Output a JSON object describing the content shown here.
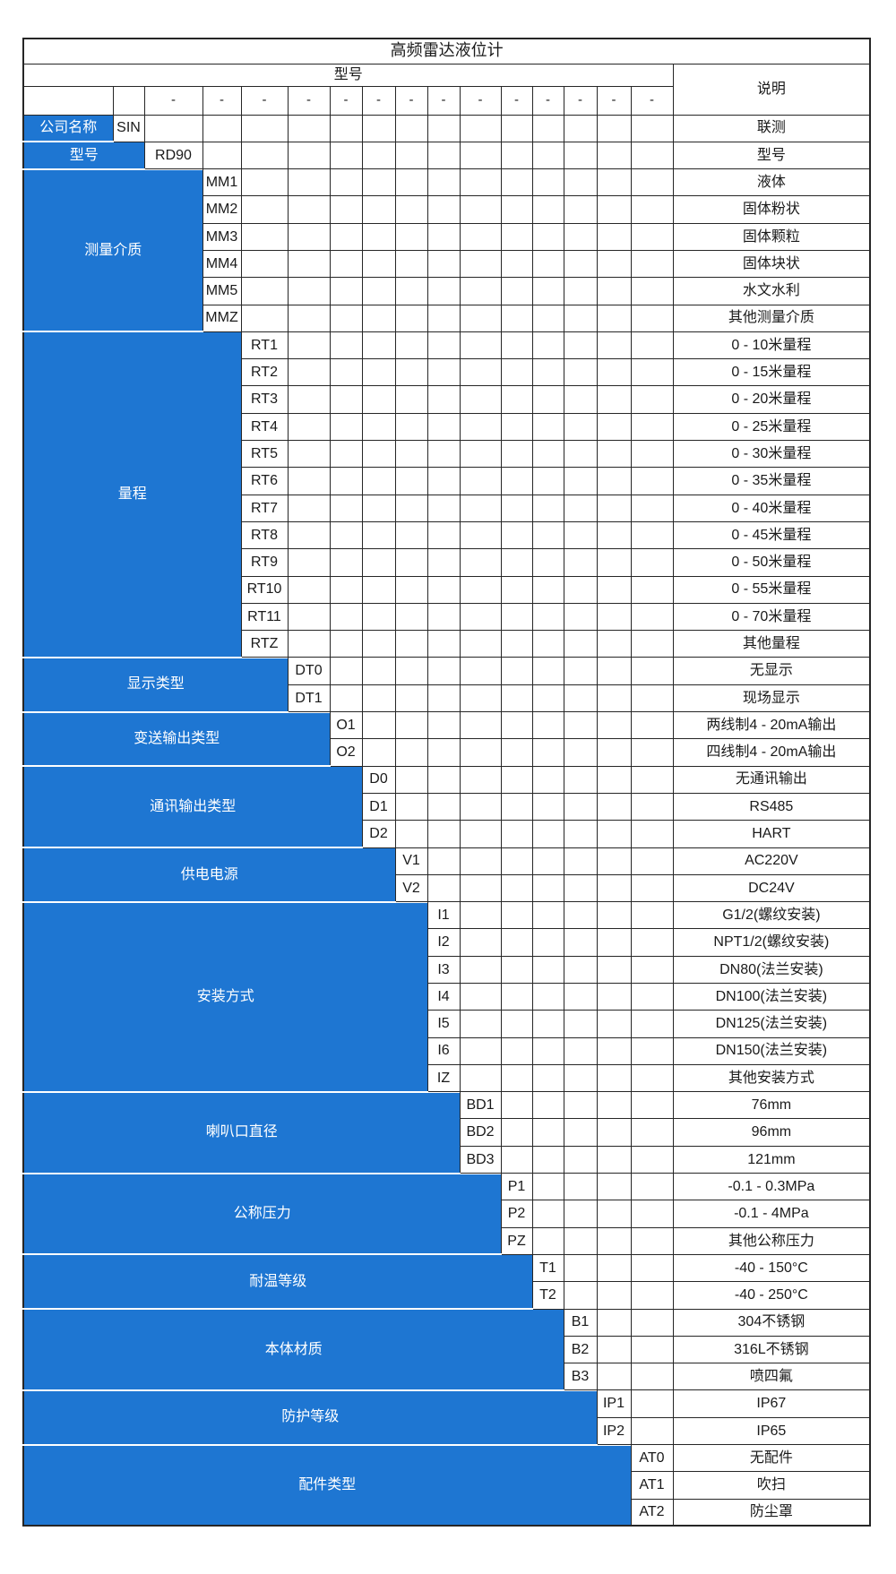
{
  "title": "高频雷达液位计",
  "header": {
    "model_label": "型号",
    "desc_label": "说明",
    "dash": "-"
  },
  "categories": [
    {
      "label": "公司名称",
      "options": [
        {
          "code": "SIN",
          "desc": "联测"
        }
      ]
    },
    {
      "label": "型号",
      "options": [
        {
          "code": "RD90",
          "desc": "型号"
        }
      ]
    },
    {
      "label": "测量介质",
      "options": [
        {
          "code": "MM1",
          "desc": "液体"
        },
        {
          "code": "MM2",
          "desc": "固体粉状"
        },
        {
          "code": "MM3",
          "desc": "固体颗粒"
        },
        {
          "code": "MM4",
          "desc": "固体块状"
        },
        {
          "code": "MM5",
          "desc": "水文水利"
        },
        {
          "code": "MMZ",
          "desc": "其他测量介质"
        }
      ]
    },
    {
      "label": "量程",
      "options": [
        {
          "code": "RT1",
          "desc": "0 - 10米量程"
        },
        {
          "code": "RT2",
          "desc": "0 - 15米量程"
        },
        {
          "code": "RT3",
          "desc": "0 - 20米量程"
        },
        {
          "code": "RT4",
          "desc": "0 - 25米量程"
        },
        {
          "code": "RT5",
          "desc": "0 - 30米量程"
        },
        {
          "code": "RT6",
          "desc": "0 - 35米量程"
        },
        {
          "code": "RT7",
          "desc": "0 - 40米量程"
        },
        {
          "code": "RT8",
          "desc": "0 - 45米量程"
        },
        {
          "code": "RT9",
          "desc": "0 - 50米量程"
        },
        {
          "code": "RT10",
          "desc": "0 - 55米量程"
        },
        {
          "code": "RT11",
          "desc": "0 - 70米量程"
        },
        {
          "code": "RTZ",
          "desc": "其他量程"
        }
      ]
    },
    {
      "label": "显示类型",
      "options": [
        {
          "code": "DT0",
          "desc": "无显示"
        },
        {
          "code": "DT1",
          "desc": "现场显示"
        }
      ]
    },
    {
      "label": "变送输出类型",
      "options": [
        {
          "code": "O1",
          "desc": "两线制4 - 20mA输出"
        },
        {
          "code": "O2",
          "desc": "四线制4 - 20mA输出"
        }
      ]
    },
    {
      "label": "通讯输出类型",
      "options": [
        {
          "code": "D0",
          "desc": "无通讯输出"
        },
        {
          "code": "D1",
          "desc": "RS485"
        },
        {
          "code": "D2",
          "desc": "HART"
        }
      ]
    },
    {
      "label": "供电电源",
      "options": [
        {
          "code": "V1",
          "desc": "AC220V"
        },
        {
          "code": "V2",
          "desc": "DC24V"
        }
      ]
    },
    {
      "label": "安装方式",
      "options": [
        {
          "code": "I1",
          "desc": "G1/2(螺纹安装)"
        },
        {
          "code": "I2",
          "desc": "NPT1/2(螺纹安装)"
        },
        {
          "code": "I3",
          "desc": "DN80(法兰安装)"
        },
        {
          "code": "I4",
          "desc": "DN100(法兰安装)"
        },
        {
          "code": "I5",
          "desc": "DN125(法兰安装)"
        },
        {
          "code": "I6",
          "desc": "DN150(法兰安装)"
        },
        {
          "code": "IZ",
          "desc": "其他安装方式"
        }
      ]
    },
    {
      "label": "喇叭口直径",
      "options": [
        {
          "code": "BD1",
          "desc": "76mm"
        },
        {
          "code": "BD2",
          "desc": "96mm"
        },
        {
          "code": "BD3",
          "desc": "121mm"
        }
      ]
    },
    {
      "label": "公称压力",
      "options": [
        {
          "code": "P1",
          "desc": "-0.1 - 0.3MPa"
        },
        {
          "code": "P2",
          "desc": "-0.1 - 4MPa"
        },
        {
          "code": "PZ",
          "desc": "其他公称压力"
        }
      ]
    },
    {
      "label": "耐温等级",
      "options": [
        {
          "code": "T1",
          "desc": "-40 - 150°C"
        },
        {
          "code": "T2",
          "desc": "-40 - 250°C"
        }
      ]
    },
    {
      "label": "本体材质",
      "options": [
        {
          "code": "B1",
          "desc": "304不锈钢"
        },
        {
          "code": "B2",
          "desc": "316L不锈钢"
        },
        {
          "code": "B3",
          "desc": "喷四氟"
        }
      ]
    },
    {
      "label": "防护等级",
      "options": [
        {
          "code": "IP1",
          "desc": "IP67"
        },
        {
          "code": "IP2",
          "desc": "IP65"
        }
      ]
    },
    {
      "label": "配件类型",
      "options": [
        {
          "code": "AT0",
          "desc": "无配件"
        },
        {
          "code": "AT1",
          "desc": "吹扫"
        },
        {
          "code": "AT2",
          "desc": "防尘罩"
        }
      ]
    }
  ],
  "colors": {
    "accent_blue": "#1e76d2",
    "border": "#262626",
    "category_text": "#ffffff",
    "body_text": "#1a1a1a"
  }
}
